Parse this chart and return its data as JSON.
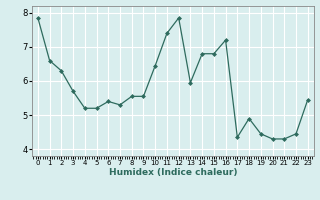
{
  "x": [
    0,
    1,
    2,
    3,
    4,
    5,
    6,
    7,
    8,
    9,
    10,
    11,
    12,
    13,
    14,
    15,
    16,
    17,
    18,
    19,
    20,
    21,
    22,
    23
  ],
  "y": [
    7.85,
    6.6,
    6.3,
    5.7,
    5.2,
    5.2,
    5.4,
    5.3,
    5.55,
    5.55,
    6.45,
    7.4,
    7.85,
    5.95,
    6.8,
    6.8,
    7.2,
    4.35,
    4.9,
    4.45,
    4.3,
    4.3,
    4.45,
    5.45
  ],
  "line_color": "#2e6b5e",
  "marker": "D",
  "marker_size": 2.0,
  "bg_color": "#d9eeee",
  "grid_color": "#ffffff",
  "xlabel": "Humidex (Indice chaleur)",
  "xlim": [
    -0.5,
    23.5
  ],
  "ylim": [
    3.8,
    8.2
  ],
  "yticks": [
    4,
    5,
    6,
    7,
    8
  ],
  "xticks": [
    0,
    1,
    2,
    3,
    4,
    5,
    6,
    7,
    8,
    9,
    10,
    11,
    12,
    13,
    14,
    15,
    16,
    17,
    18,
    19,
    20,
    21,
    22,
    23
  ]
}
